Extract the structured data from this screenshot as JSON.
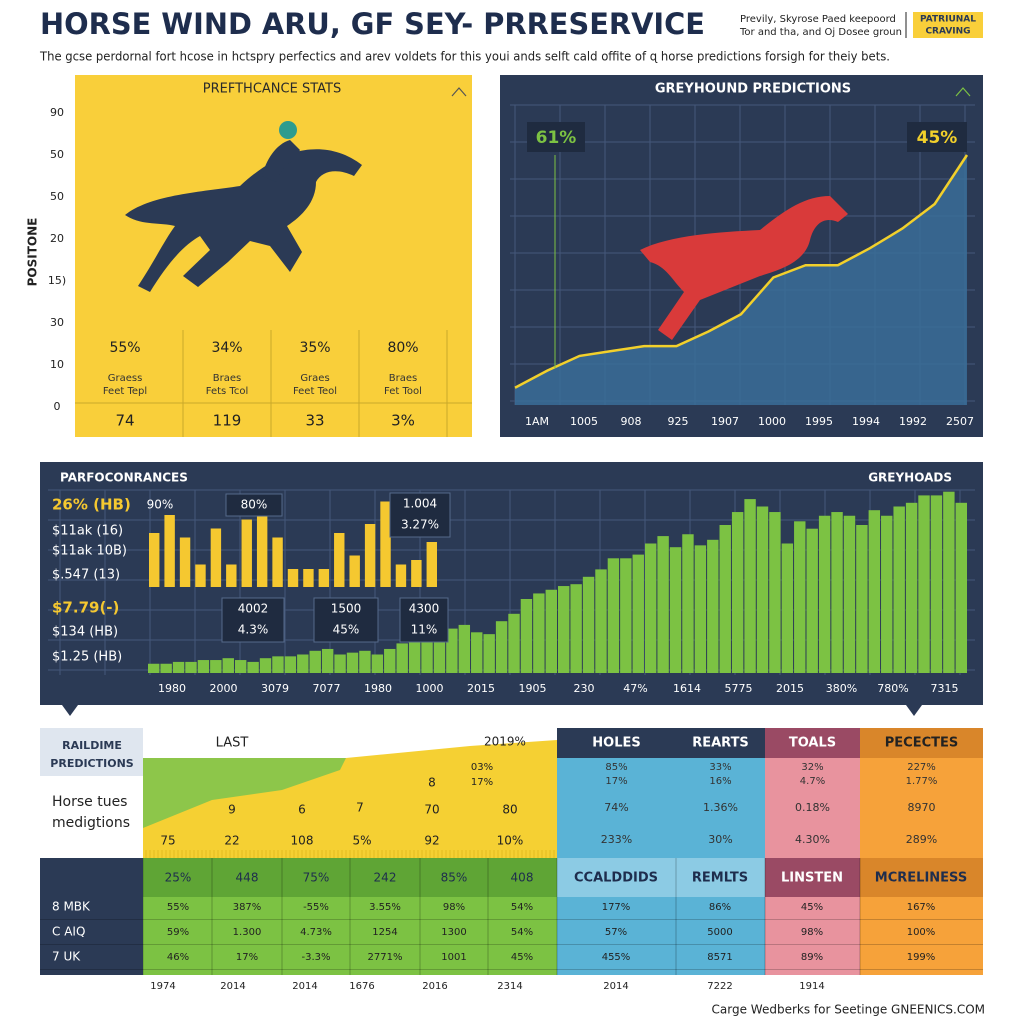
{
  "header": {
    "title": "HORSE WIND ARU, GF SEY- PRRESERVICE",
    "subtitle": "The gcse perdornal fort hcose in hctspry perfectics and arev voldets for this youi ands selft cald offite of ɋ horse predictions forsigh for theiy bets.",
    "note_lines": [
      "Previly, Skyrose Paed keepoord",
      "Tor and tha, and Oj Dosee groun"
    ],
    "badge_lines": [
      "PATRIUNAL",
      "CRAVING"
    ]
  },
  "stats_panel": {
    "title": "PREFTHCANCE STATS",
    "axis_label": "POSITONE",
    "axis_ticks": [
      "90",
      "50",
      "50",
      "20",
      "15)",
      "30",
      "10",
      "0"
    ],
    "columns": [
      {
        "percent": "55%",
        "label_lines": [
          "Graess",
          "Feet Tepl"
        ],
        "number": "74"
      },
      {
        "percent": "34%",
        "label_lines": [
          "Braes",
          "Fets Tcol"
        ],
        "number": "119"
      },
      {
        "percent": "35%",
        "label_lines": [
          "Graes",
          "Feet Teol"
        ],
        "number": "33"
      },
      {
        "percent": "80%",
        "label_lines": [
          "Braes",
          "Fet Tool"
        ],
        "number": "3%"
      }
    ]
  },
  "greyhound_panel": {
    "title": "GREYHOUND PREDICTIONS",
    "callouts": [
      "61%",
      "45%"
    ],
    "x_labels": [
      "1AM",
      "1005",
      "908",
      "925",
      "1907",
      "1000",
      "1995",
      "1994",
      "1992",
      "2507"
    ],
    "line_values": [
      5,
      12,
      18,
      20,
      22,
      22,
      28,
      35,
      50,
      55,
      55,
      62,
      70,
      80,
      100
    ]
  },
  "performance_panel": {
    "title_left": "PARFOCONRANCES",
    "title_right": "GREYHOADS",
    "left_labels": [
      "26% (HB)",
      "$11ak (16)",
      "$11ak 10B)",
      "$.547 (13)",
      "$7.79(-)",
      "$134 (HB)",
      "$1.25 (HB)"
    ],
    "boxes": [
      [
        "90%"
      ],
      [
        "80%"
      ],
      [
        "1.004",
        "3.27%"
      ],
      [
        "4002",
        "4.3%"
      ],
      [
        "1500",
        "45%"
      ],
      [
        "4300",
        "11%"
      ]
    ],
    "x_labels": [
      "1980",
      "2000",
      "3079",
      "7077",
      "1980",
      "1000",
      "2015",
      "1905",
      "230",
      "47%",
      "1614",
      "5775",
      "2015",
      "380%",
      "780%",
      "7315"
    ],
    "yellow_bars": [
      60,
      80,
      55,
      25,
      65,
      25,
      75,
      85,
      55,
      20,
      20,
      20,
      60,
      35,
      70,
      95,
      25,
      30,
      50
    ],
    "green_bars": [
      5,
      5,
      6,
      6,
      7,
      7,
      8,
      7,
      6,
      8,
      9,
      9,
      10,
      12,
      13,
      10,
      11,
      12,
      10,
      13,
      16,
      17,
      18,
      20,
      24,
      26,
      22,
      21,
      28,
      32,
      40,
      43,
      45,
      47,
      48,
      52,
      56,
      62,
      62,
      64,
      70,
      74,
      68,
      75,
      69,
      72,
      80,
      87,
      94,
      90,
      87,
      70,
      82,
      78,
      85,
      87,
      85,
      80,
      88,
      85,
      90,
      92,
      96,
      96,
      98,
      92
    ]
  },
  "table": {
    "row_title_lines": [
      "RAILDIME",
      "PREDICTIONS"
    ],
    "row_subtitle_lines": [
      "Horse tues",
      "medigtions"
    ],
    "last": {
      "title": "LAST",
      "top": "2019%",
      "marks": [
        "03%",
        "17%",
        "8",
        "9",
        "6",
        "7",
        "70",
        "80",
        "75",
        "22",
        "108",
        "5%",
        "92",
        "10%"
      ]
    },
    "upper_columns": [
      {
        "header": "HOLES",
        "cells": [
          "85%",
          "17%",
          "74%",
          "233%"
        ]
      },
      {
        "header": "REARTS",
        "cells": [
          "33%",
          "16%",
          "1.36%",
          "30%"
        ]
      },
      {
        "header": "TOALS",
        "cells": [
          "32%",
          "4.7%",
          "0.18%",
          "4.30%"
        ]
      },
      {
        "header": "PECECTES",
        "cells": [
          "227%",
          "1.77%",
          "8970",
          "289%"
        ]
      }
    ],
    "lower_header": [
      "25%",
      "448",
      "75%",
      "242",
      "85%",
      "408",
      "CCALDDIDS",
      "REMLTS",
      "LINSTEN",
      "MCRELINESS"
    ],
    "lower_rows": [
      {
        "label": "8 MBK",
        "cells": [
          "55%",
          "387%",
          "-55%",
          "3.55%",
          "98%",
          "54%",
          "177%",
          "86%",
          "45%",
          "167%"
        ]
      },
      {
        "label": "C AIQ",
        "cells": [
          "59%",
          "1.300",
          "4.73%",
          "1254",
          "1300",
          "54%",
          "57%",
          "5000",
          "98%",
          "100%"
        ]
      },
      {
        "label": "7 UK",
        "cells": [
          "46%",
          "17%",
          "-3.3%",
          "2771%",
          "1001",
          "45%",
          "455%",
          "8571",
          "89%",
          "199%"
        ]
      }
    ]
  },
  "footer": {
    "years": [
      "1974",
      "2014",
      "2014",
      "1676",
      "2016",
      "2314",
      "2014",
      "7222",
      "1914"
    ],
    "credit": "Carge Wedberks for Seetinge GNEENICS.COM"
  }
}
